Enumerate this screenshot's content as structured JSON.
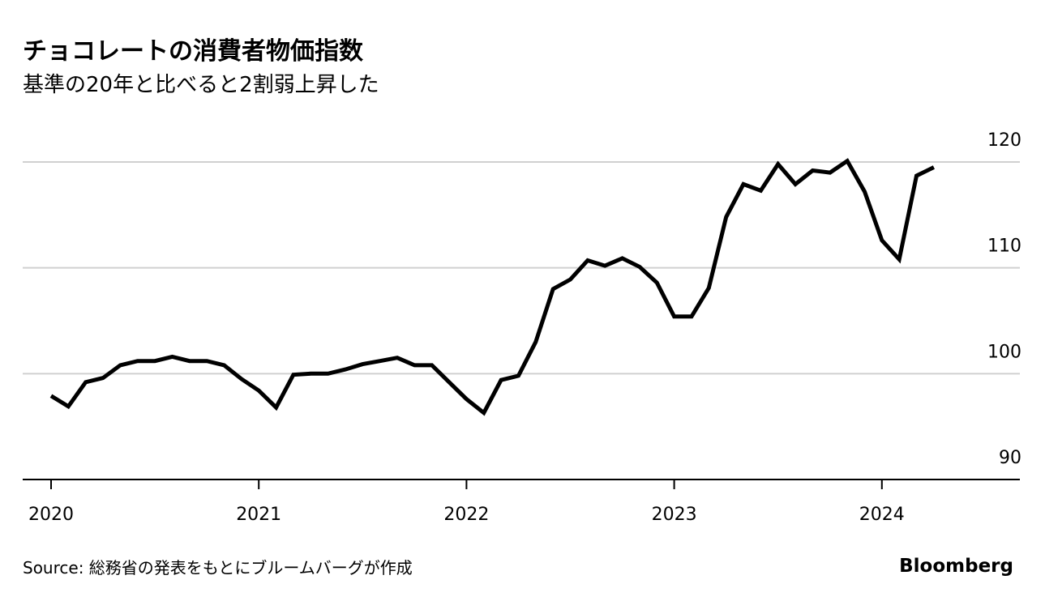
{
  "chart_data": {
    "type": "line",
    "title": "チョコレートの消費者物価指数",
    "subtitle": "基準の20年と比べると2割弱上昇した",
    "source": "Source: 総務省の発表をもとにブルームバーグが作成",
    "brand": "Bloomberg",
    "categories": [
      "2020",
      null,
      null,
      null,
      null,
      null,
      null,
      null,
      null,
      null,
      null,
      null,
      "2021",
      null,
      null,
      null,
      null,
      null,
      null,
      null,
      null,
      null,
      null,
      null,
      "2022",
      null,
      null,
      null,
      null,
      null,
      null,
      null,
      null,
      null,
      null,
      null,
      "2023",
      null,
      null,
      null,
      null,
      null,
      null,
      null,
      null,
      null,
      null,
      null,
      "2024",
      null,
      null,
      null
    ],
    "series": [
      {
        "color": "#000000",
        "values": [
          97.9,
          96.9,
          99.2,
          99.6,
          100.8,
          101.2,
          101.2,
          101.6,
          101.2,
          101.2,
          100.8,
          99.5,
          98.4,
          96.8,
          99.9,
          100.0,
          100.0,
          100.4,
          100.9,
          101.2,
          101.5,
          100.8,
          100.8,
          99.2,
          97.6,
          96.3,
          99.4,
          99.8,
          103.0,
          108.0,
          108.9,
          110.7,
          110.2,
          110.9,
          110.1,
          108.6,
          105.4,
          105.4,
          108.1,
          114.8,
          117.9,
          117.3,
          119.8,
          117.9,
          119.2,
          119.0,
          120.1,
          117.2,
          112.6,
          110.8,
          118.7,
          119.5
        ]
      }
    ],
    "ylim": [
      90,
      120
    ],
    "yticks": [
      90,
      100,
      110,
      120
    ],
    "grid": true
  }
}
